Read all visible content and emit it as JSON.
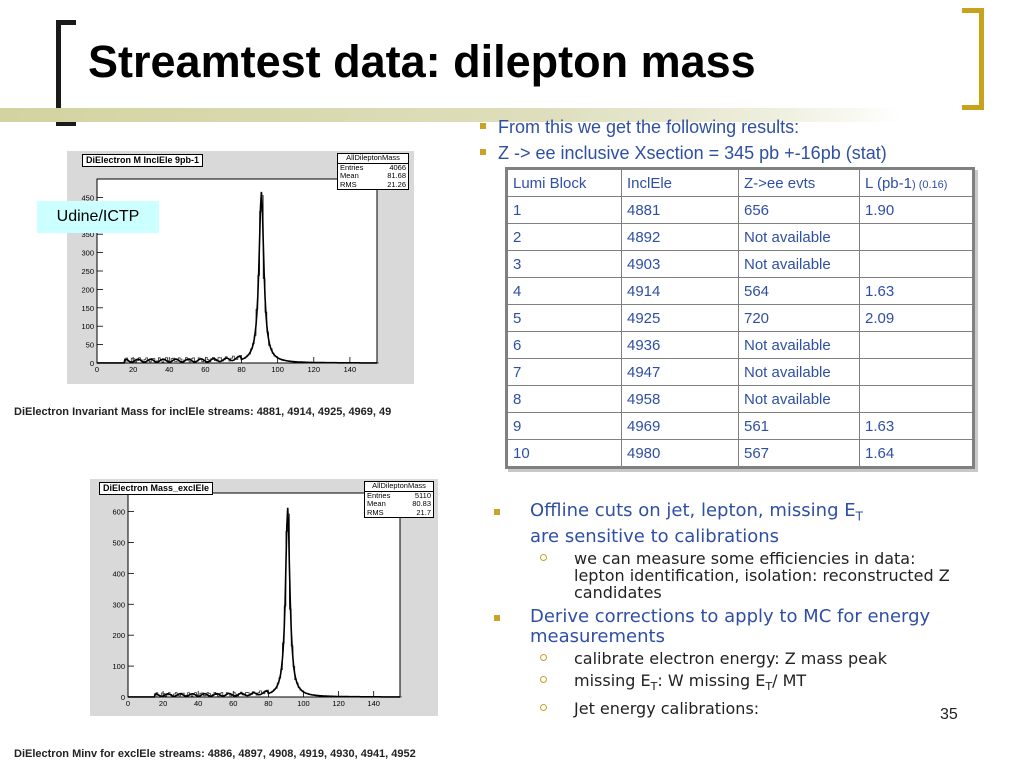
{
  "title": "Streamtest data: dilepton mass",
  "tag": "Udine/ICTP",
  "plot1": {
    "title": "DiElectron M InclEle 9pb-1",
    "stats": {
      "name": "AllDileptonMass",
      "rows": [
        [
          "Entries",
          "4066"
        ],
        [
          "Mean",
          "81.68"
        ],
        [
          "RMS",
          "21.26"
        ]
      ]
    },
    "yticks": [
      "450",
      "400",
      "350",
      "300",
      "250",
      "200",
      "150",
      "100",
      "50",
      "0"
    ],
    "xticks": [
      "0",
      "20",
      "40",
      "60",
      "80",
      "100",
      "120",
      "140"
    ],
    "caption": "DiElectron Invariant Mass for inclEle streams: 4881, 4914, 4925, 4969, 49"
  },
  "plot2": {
    "title": "DiElectron Mass_exclEle",
    "stats": {
      "name": "AllDileptonMass",
      "rows": [
        [
          "Entries",
          "5110"
        ],
        [
          "Mean",
          "80.83"
        ],
        [
          "RMS",
          "21.7"
        ]
      ]
    },
    "yticks": [
      "600",
      "500",
      "400",
      "300",
      "200",
      "100",
      "0"
    ],
    "xticks": [
      "0",
      "20",
      "40",
      "60",
      "80",
      "100",
      "120",
      "140"
    ],
    "caption": "DiElectron Minv for exclEle streams: 4886, 4897, 4908, 4919, 4930, 4941, 4952"
  },
  "bullets_top": [
    "From this we get the following results:",
    "Z -> ee inclusive Xsection = 345 pb +-16pb (stat)"
  ],
  "table": {
    "headers": [
      "Lumi Block",
      "InclEle",
      "Z->ee evts",
      "L (pb-1"
    ],
    "header_small": ") (0.16)",
    "rows": [
      [
        "1",
        "4881",
        "656",
        "1.90"
      ],
      [
        "2",
        "4892",
        "Not available",
        ""
      ],
      [
        "3",
        "4903",
        "Not available",
        ""
      ],
      [
        "4",
        "4914",
        "564",
        "1.63"
      ],
      [
        "5",
        "4925",
        "720",
        "2.09"
      ],
      [
        "6",
        "4936",
        "Not available",
        ""
      ],
      [
        "7",
        "4947",
        "Not available",
        ""
      ],
      [
        "8",
        "4958",
        "Not available",
        ""
      ],
      [
        "9",
        "4969",
        "561",
        "1.63"
      ],
      [
        "10",
        "4980",
        "567",
        "1.64"
      ]
    ]
  },
  "lower": {
    "b1_pre": "Offline cuts on jet, lepton, missing E",
    "b1_sub": "T",
    "b1_post": "are sensitive to calibrations",
    "s1": "we can measure some efficiencies in data: lepton identification, isolation: reconstructed Z candidates",
    "b2": "Derive corrections to apply to MC for energy measurements",
    "s2": "calibrate electron energy: Z mass peak",
    "s3_a": "missing E",
    "s3_sub1": "T",
    "s3_b": ": W missing E",
    "s3_sub2": "T",
    "s3_c": "/ MT",
    "s4": "Jet energy calibrations:"
  },
  "page_number": "35",
  "colors": {
    "accent_gold": "#c9a227",
    "text_blue": "#2e4fa3",
    "tag_bg": "#ccffff"
  }
}
